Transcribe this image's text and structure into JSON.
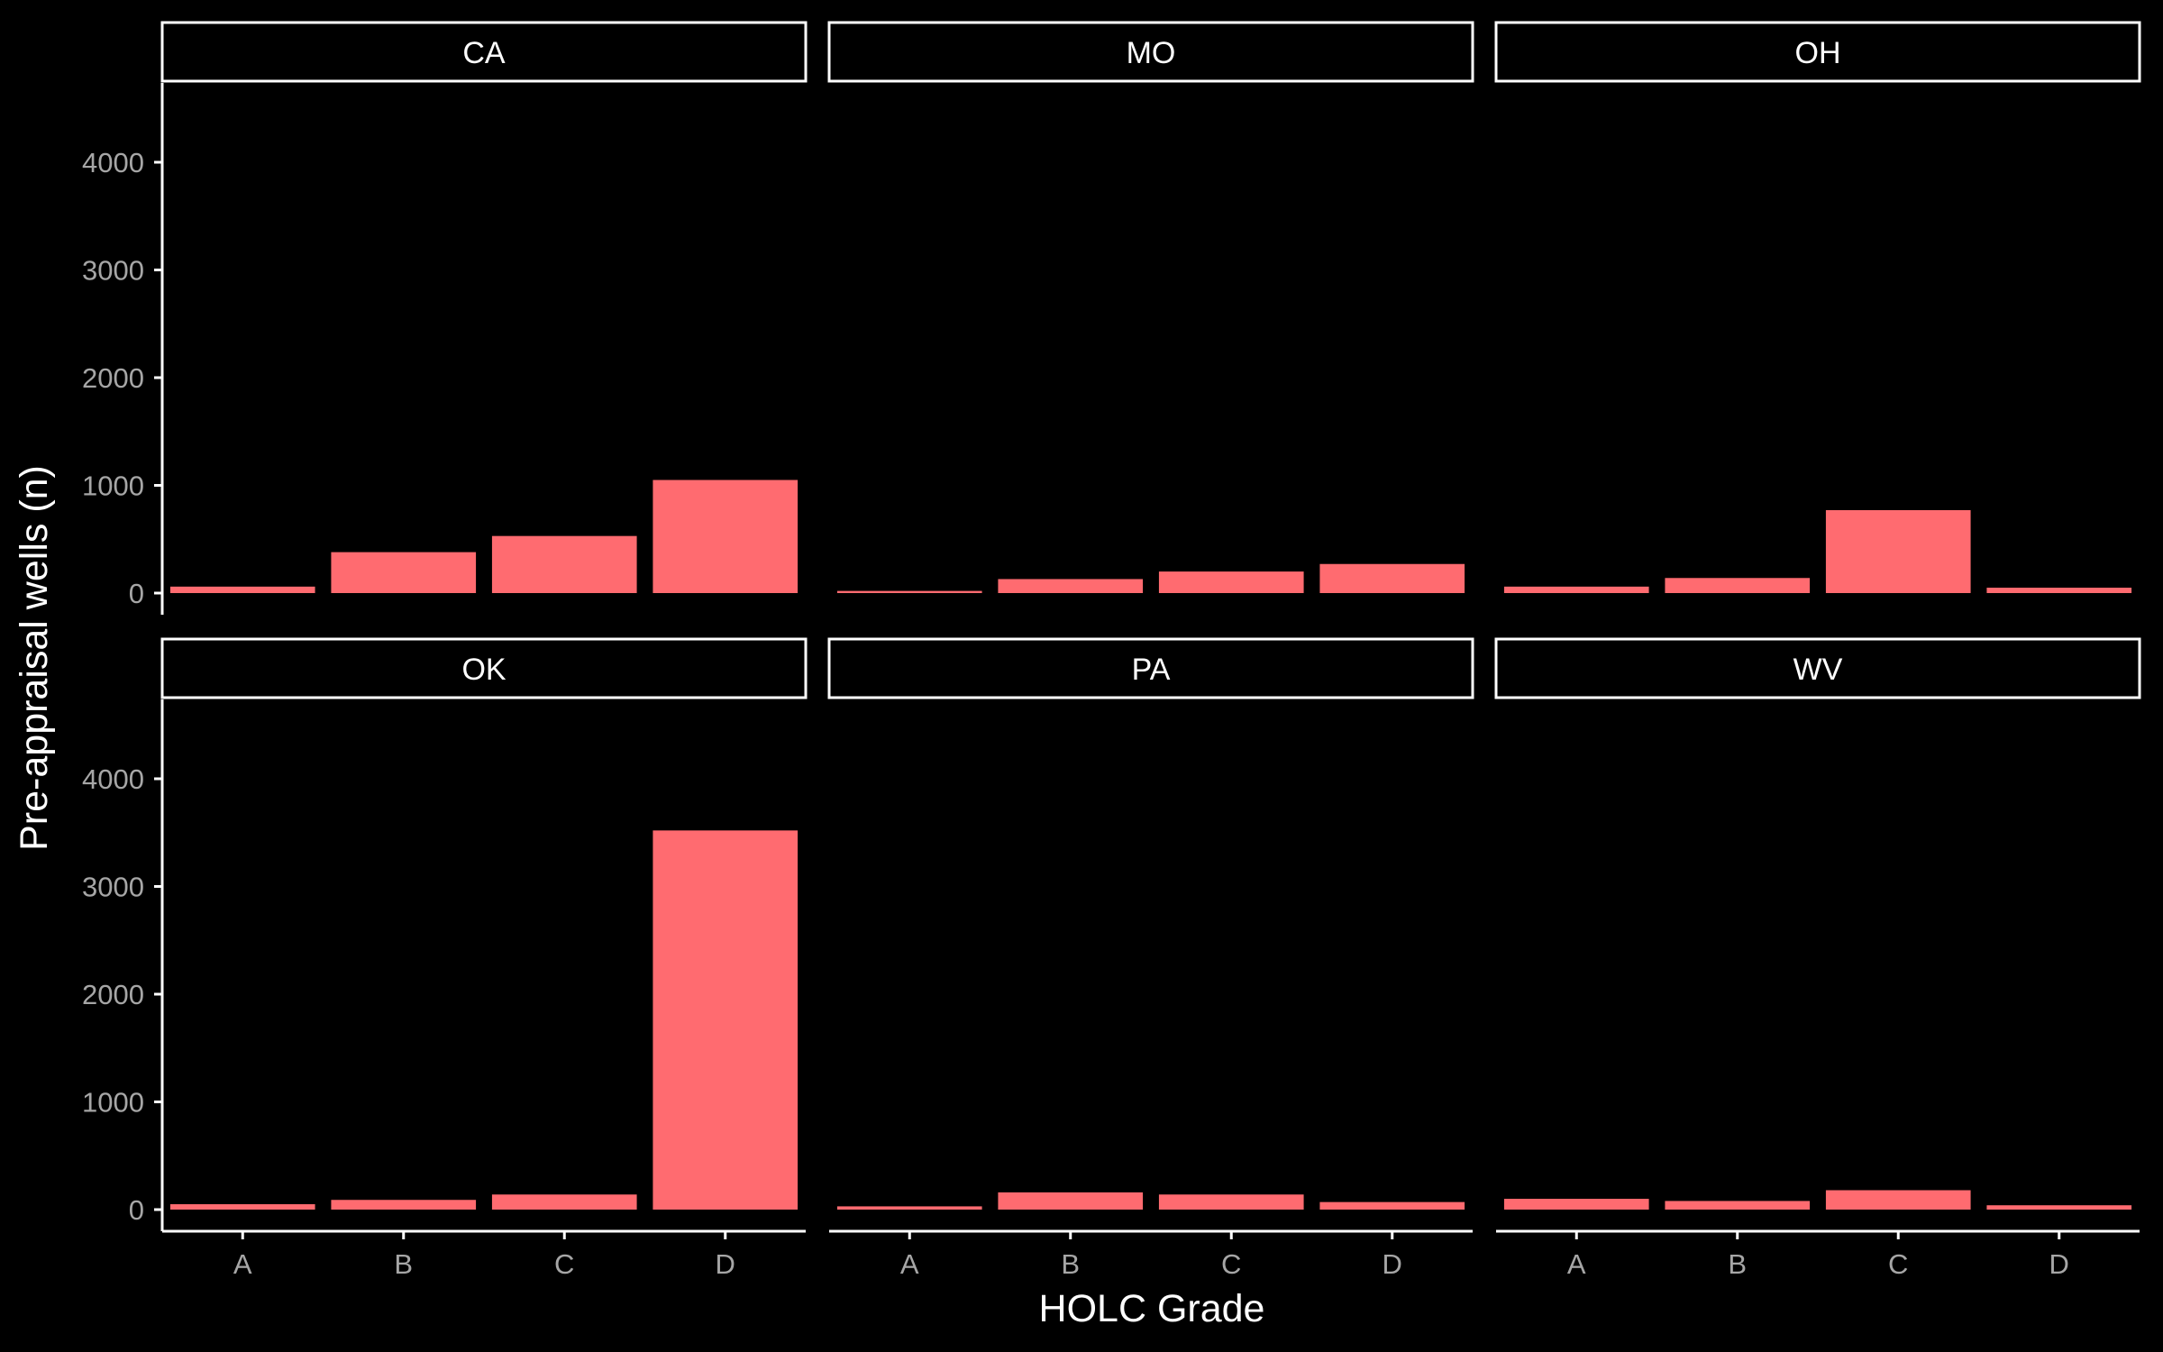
{
  "chart_data": {
    "type": "bar",
    "layout": "facet-grid 2x3",
    "xlabel": "HOLC Grade",
    "ylabel": "Pre-appraisal wells (n)",
    "ylim": [
      0,
      4700
    ],
    "y_ticks": [
      "0",
      "1000",
      "2000",
      "3000",
      "4000"
    ],
    "categories": [
      "A",
      "B",
      "C",
      "D"
    ],
    "bar_color": "#FF6B70",
    "background": "#000000",
    "facets": [
      {
        "label": "CA",
        "values": [
          60,
          380,
          530,
          1050
        ]
      },
      {
        "label": "MO",
        "values": [
          20,
          130,
          200,
          270
        ]
      },
      {
        "label": "OH",
        "values": [
          60,
          140,
          770,
          50
        ]
      },
      {
        "label": "OK",
        "values": [
          50,
          90,
          140,
          3520
        ]
      },
      {
        "label": "PA",
        "values": [
          30,
          160,
          140,
          70
        ]
      },
      {
        "label": "WV",
        "values": [
          100,
          80,
          180,
          40
        ]
      }
    ]
  }
}
